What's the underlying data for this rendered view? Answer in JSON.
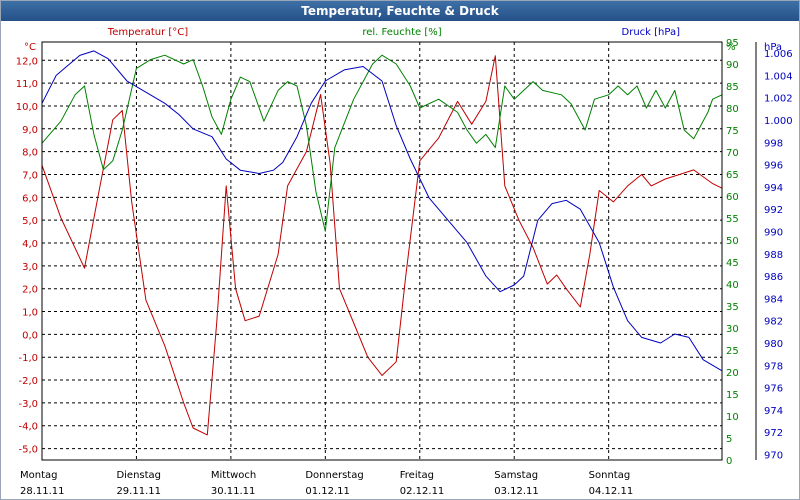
{
  "chart_data": {
    "type": "line",
    "title": "Temperatur, Feuchte & Druck",
    "colors": {
      "temperature": "#c00000",
      "humidity": "#008000",
      "pressure": "#0000c0",
      "grid": "#000000"
    },
    "axes": {
      "left": {
        "unit": "°C",
        "label": "Temperatur [°C]",
        "min": -5.5,
        "max": 12.8,
        "ticks": [
          "12,0",
          "11,0",
          "10,0",
          "9,0",
          "8,0",
          "7,0",
          "6,0",
          "5,0",
          "4,0",
          "3,0",
          "2,0",
          "1,0",
          "0,0",
          "-1,0",
          "-2,0",
          "-3,0",
          "-4,0",
          "-5,0"
        ],
        "tick_values": [
          12,
          11,
          10,
          9,
          8,
          7,
          6,
          5,
          4,
          3,
          2,
          1,
          0,
          -1,
          -2,
          -3,
          -4,
          -5
        ]
      },
      "middle": {
        "unit": "%",
        "label": "rel. Feuchte [%]",
        "min": 0,
        "max": 95,
        "ticks": [
          "95",
          "90",
          "85",
          "80",
          "75",
          "70",
          "65",
          "60",
          "55",
          "50",
          "45",
          "40",
          "35",
          "30",
          "25",
          "20",
          "15",
          "10",
          "5",
          "0"
        ],
        "tick_values": [
          95,
          90,
          85,
          80,
          75,
          70,
          65,
          60,
          55,
          50,
          45,
          40,
          35,
          30,
          25,
          20,
          15,
          10,
          5,
          0
        ]
      },
      "right": {
        "unit": "hPa",
        "label": "Druck [hPa]",
        "min": 969.5,
        "max": 1007,
        "ticks": [
          "1.006",
          "1.004",
          "1.002",
          "1.000",
          "998",
          "996",
          "994",
          "992",
          "990",
          "988",
          "986",
          "984",
          "982",
          "980",
          "978",
          "976",
          "974",
          "972",
          "970"
        ],
        "tick_values": [
          1006,
          1004,
          1002,
          1000,
          998,
          996,
          994,
          992,
          990,
          988,
          986,
          984,
          982,
          980,
          978,
          976,
          974,
          972,
          970
        ]
      }
    },
    "x": {
      "min": 0,
      "max": 7.2,
      "days": [
        {
          "weekday": "Montag",
          "date": "28.11.11",
          "pos": 0
        },
        {
          "weekday": "Dienstag",
          "date": "29.11.11",
          "pos": 1
        },
        {
          "weekday": "Mittwoch",
          "date": "30.11.11",
          "pos": 2
        },
        {
          "weekday": "Donnerstag",
          "date": "01.12.11",
          "pos": 3
        },
        {
          "weekday": "Freitag",
          "date": "02.12.11",
          "pos": 4
        },
        {
          "weekday": "Samstag",
          "date": "03.12.11",
          "pos": 5
        },
        {
          "weekday": "Sonntag",
          "date": "04.12.11",
          "pos": 6
        }
      ]
    },
    "series": [
      {
        "name": "Temperatur",
        "axis": "left",
        "color": "#c00000",
        "points": [
          [
            0,
            7.4
          ],
          [
            0.2,
            5.1
          ],
          [
            0.45,
            2.9
          ],
          [
            0.6,
            6.2
          ],
          [
            0.75,
            9.4
          ],
          [
            0.85,
            9.8
          ],
          [
            0.95,
            5.8
          ],
          [
            1.1,
            1.5
          ],
          [
            1.3,
            -0.5
          ],
          [
            1.5,
            -3.0
          ],
          [
            1.6,
            -4.1
          ],
          [
            1.75,
            -4.4
          ],
          [
            1.85,
            0.5
          ],
          [
            1.95,
            6.5
          ],
          [
            2.05,
            2.0
          ],
          [
            2.15,
            0.6
          ],
          [
            2.3,
            0.8
          ],
          [
            2.5,
            3.5
          ],
          [
            2.6,
            6.5
          ],
          [
            2.8,
            8.0
          ],
          [
            2.95,
            10.5
          ],
          [
            3.05,
            7.5
          ],
          [
            3.15,
            2.0
          ],
          [
            3.3,
            0.5
          ],
          [
            3.45,
            -1.0
          ],
          [
            3.6,
            -1.8
          ],
          [
            3.75,
            -1.2
          ],
          [
            3.85,
            2.5
          ],
          [
            4.0,
            7.6
          ],
          [
            4.2,
            8.6
          ],
          [
            4.4,
            10.2
          ],
          [
            4.55,
            9.2
          ],
          [
            4.7,
            10.2
          ],
          [
            4.8,
            12.2
          ],
          [
            4.9,
            6.5
          ],
          [
            5.05,
            5.0
          ],
          [
            5.2,
            3.8
          ],
          [
            5.35,
            2.2
          ],
          [
            5.45,
            2.6
          ],
          [
            5.55,
            2.0
          ],
          [
            5.7,
            1.2
          ],
          [
            5.8,
            3.5
          ],
          [
            5.9,
            6.3
          ],
          [
            6.05,
            5.8
          ],
          [
            6.2,
            6.5
          ],
          [
            6.35,
            7.0
          ],
          [
            6.45,
            6.5
          ],
          [
            6.6,
            6.8
          ],
          [
            6.75,
            7.0
          ],
          [
            6.9,
            7.2
          ],
          [
            7.1,
            6.6
          ],
          [
            7.2,
            6.4
          ]
        ]
      },
      {
        "name": "rel. Feuchte",
        "axis": "middle",
        "color": "#008000",
        "points": [
          [
            0,
            72
          ],
          [
            0.2,
            77
          ],
          [
            0.35,
            83
          ],
          [
            0.45,
            85
          ],
          [
            0.55,
            74
          ],
          [
            0.65,
            66
          ],
          [
            0.75,
            68
          ],
          [
            0.85,
            75
          ],
          [
            1.0,
            89
          ],
          [
            1.15,
            91
          ],
          [
            1.3,
            92
          ],
          [
            1.5,
            90
          ],
          [
            1.6,
            91
          ],
          [
            1.7,
            85
          ],
          [
            1.8,
            78
          ],
          [
            1.9,
            74
          ],
          [
            2.0,
            82
          ],
          [
            2.1,
            87
          ],
          [
            2.2,
            86
          ],
          [
            2.35,
            77
          ],
          [
            2.5,
            84
          ],
          [
            2.6,
            86
          ],
          [
            2.7,
            85
          ],
          [
            2.8,
            76
          ],
          [
            2.9,
            61
          ],
          [
            3.0,
            52
          ],
          [
            3.1,
            71
          ],
          [
            3.3,
            82
          ],
          [
            3.5,
            90
          ],
          [
            3.6,
            92
          ],
          [
            3.75,
            90
          ],
          [
            3.9,
            85
          ],
          [
            4.0,
            80
          ],
          [
            4.2,
            82
          ],
          [
            4.4,
            79
          ],
          [
            4.5,
            75
          ],
          [
            4.6,
            72
          ],
          [
            4.7,
            74
          ],
          [
            4.8,
            71
          ],
          [
            4.9,
            85
          ],
          [
            5.0,
            82
          ],
          [
            5.1,
            84
          ],
          [
            5.2,
            86
          ],
          [
            5.3,
            84
          ],
          [
            5.5,
            83
          ],
          [
            5.6,
            81
          ],
          [
            5.75,
            75
          ],
          [
            5.85,
            82
          ],
          [
            6.0,
            83
          ],
          [
            6.1,
            85
          ],
          [
            6.2,
            83
          ],
          [
            6.3,
            85
          ],
          [
            6.4,
            80
          ],
          [
            6.5,
            84
          ],
          [
            6.6,
            80
          ],
          [
            6.7,
            84
          ],
          [
            6.8,
            75
          ],
          [
            6.9,
            73
          ],
          [
            7.05,
            79
          ],
          [
            7.1,
            82
          ],
          [
            7.2,
            83
          ]
        ]
      },
      {
        "name": "Druck",
        "axis": "right",
        "color": "#0000c0",
        "points": [
          [
            0,
            1001.5
          ],
          [
            0.15,
            1004
          ],
          [
            0.4,
            1005.8
          ],
          [
            0.55,
            1006.2
          ],
          [
            0.7,
            1005.5
          ],
          [
            0.9,
            1003.5
          ],
          [
            1.1,
            1002.5
          ],
          [
            1.3,
            1001.5
          ],
          [
            1.45,
            1000.5
          ],
          [
            1.6,
            999.2
          ],
          [
            1.8,
            998.5
          ],
          [
            1.95,
            996.5
          ],
          [
            2.1,
            995.5
          ],
          [
            2.3,
            995.2
          ],
          [
            2.45,
            995.5
          ],
          [
            2.55,
            996.2
          ],
          [
            2.7,
            998.5
          ],
          [
            2.85,
            1001.5
          ],
          [
            3.0,
            1003.5
          ],
          [
            3.2,
            1004.5
          ],
          [
            3.4,
            1004.8
          ],
          [
            3.6,
            1003.5
          ],
          [
            3.75,
            999.5
          ],
          [
            3.9,
            996.5
          ],
          [
            4.1,
            993
          ],
          [
            4.3,
            991
          ],
          [
            4.5,
            989
          ],
          [
            4.7,
            986
          ],
          [
            4.85,
            984.6
          ],
          [
            5.0,
            985.2
          ],
          [
            5.1,
            986
          ],
          [
            5.25,
            991
          ],
          [
            5.4,
            992.5
          ],
          [
            5.55,
            992.8
          ],
          [
            5.7,
            992
          ],
          [
            5.9,
            989
          ],
          [
            6.05,
            985
          ],
          [
            6.2,
            982
          ],
          [
            6.35,
            980.5
          ],
          [
            6.55,
            980
          ],
          [
            6.7,
            980.8
          ],
          [
            6.85,
            980.5
          ],
          [
            7.0,
            978.5
          ],
          [
            7.2,
            977.5
          ]
        ]
      }
    ]
  }
}
